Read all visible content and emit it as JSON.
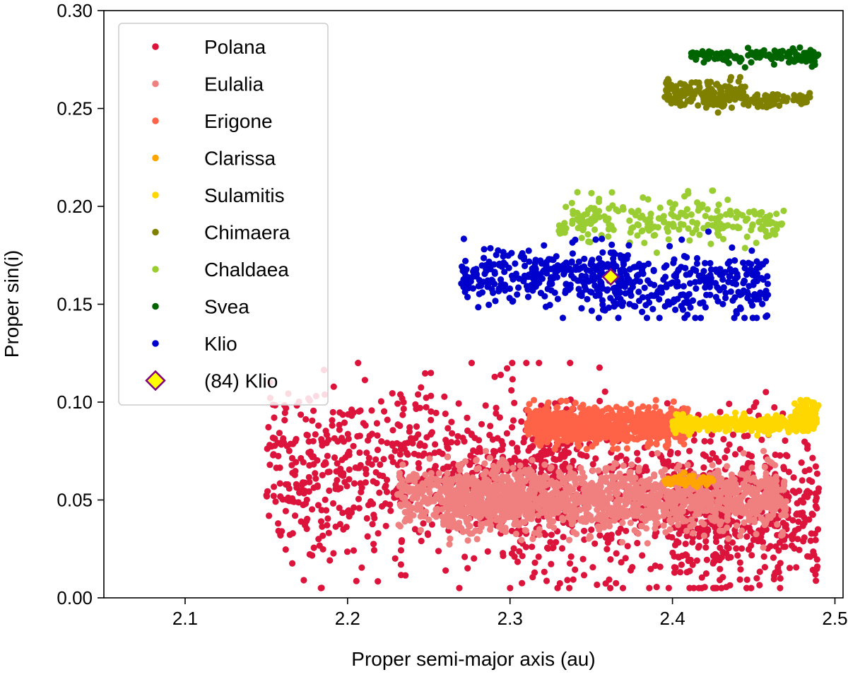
{
  "chart_data": {
    "type": "scatter",
    "title": "",
    "xlabel": "Proper semi-major axis (au)",
    "ylabel": "Proper sin(i)",
    "xlim": [
      2.05,
      2.505
    ],
    "ylim": [
      0.0,
      0.3
    ],
    "xticks": [
      2.1,
      2.2,
      2.3,
      2.4,
      2.5
    ],
    "xtick_labels": [
      "2.1",
      "2.2",
      "2.3",
      "2.4",
      "2.5"
    ],
    "yticks": [
      0.0,
      0.05,
      0.1,
      0.15,
      0.2,
      0.25,
      0.3
    ],
    "ytick_labels": [
      "0.00",
      "0.05",
      "0.10",
      "0.15",
      "0.20",
      "0.25",
      "0.30"
    ],
    "grid": false,
    "legend_position": "top-left",
    "series": [
      {
        "name": "Polana",
        "color": "#dc143c",
        "count": 1600,
        "seed": 11,
        "clusters": [
          {
            "w": 0.45,
            "a_range": [
              2.15,
              2.34
            ],
            "s_mean": 0.065,
            "s_sd": 0.022
          },
          {
            "w": 0.35,
            "a_range": [
              2.3,
              2.47
            ],
            "s_mean": 0.052,
            "s_sd": 0.022
          },
          {
            "w": 0.2,
            "a_range": [
              2.4,
              2.49
            ],
            "s_mean": 0.04,
            "s_sd": 0.018
          }
        ],
        "s_clip": [
          0.005,
          0.12
        ]
      },
      {
        "name": "Eulalia",
        "color": "#f08080",
        "count": 1700,
        "seed": 23,
        "clusters": [
          {
            "w": 0.2,
            "a_range": [
              2.23,
              2.31
            ],
            "s_mean": 0.052,
            "s_sd": 0.008
          },
          {
            "w": 0.8,
            "a_range": [
              2.26,
              2.47
            ],
            "s_mean": 0.05,
            "s_sd": 0.008
          }
        ],
        "s_clip": [
          0.025,
          0.075
        ]
      },
      {
        "name": "Erigone",
        "color": "#ff6347",
        "count": 900,
        "seed": 31,
        "clusters": [
          {
            "w": 1.0,
            "a_range": [
              2.31,
              2.41
            ],
            "s_mean": 0.088,
            "s_sd": 0.0045
          }
        ],
        "s_clip": [
          0.076,
          0.101
        ]
      },
      {
        "name": "Clarissa",
        "color": "#ffa500",
        "count": 60,
        "seed": 37,
        "clusters": [
          {
            "w": 1.0,
            "a_range": [
              2.395,
              2.425
            ],
            "s_mean": 0.06,
            "s_sd": 0.0013
          }
        ],
        "s_clip": [
          0.056,
          0.064
        ]
      },
      {
        "name": "Sulamitis",
        "color": "#ffd700",
        "count": 500,
        "seed": 41,
        "clusters": [
          {
            "w": 0.85,
            "a_range": [
              2.4,
              2.49
            ],
            "s_mean": 0.089,
            "s_sd": 0.002
          },
          {
            "w": 0.15,
            "a_range": [
              2.475,
              2.49
            ],
            "s_mean": 0.094,
            "s_sd": 0.0035
          }
        ],
        "s_clip": [
          0.083,
          0.101
        ]
      },
      {
        "name": "Chimaera",
        "color": "#808000",
        "count": 220,
        "seed": 53,
        "clusters": [
          {
            "w": 0.75,
            "a_range": [
              2.395,
              2.445
            ],
            "s_mean": 0.258,
            "s_sd": 0.0035
          },
          {
            "w": 0.25,
            "a_range": [
              2.445,
              2.485
            ],
            "s_mean": 0.254,
            "s_sd": 0.0018
          }
        ],
        "s_clip": [
          0.244,
          0.266
        ]
      },
      {
        "name": "Chaldaea",
        "color": "#9acd32",
        "count": 230,
        "seed": 59,
        "clusters": [
          {
            "w": 1.0,
            "a_range": [
              2.33,
              2.47
            ],
            "s_mean": 0.193,
            "s_sd": 0.0055
          }
        ],
        "s_clip": [
          0.17,
          0.208
        ]
      },
      {
        "name": "Svea",
        "color": "#006400",
        "count": 120,
        "seed": 61,
        "clusters": [
          {
            "w": 1.0,
            "a_range": [
              2.41,
              2.49
            ],
            "s_mean": 0.277,
            "s_sd": 0.0018
          }
        ],
        "s_clip": [
          0.271,
          0.283
        ]
      },
      {
        "name": "Klio",
        "color": "#0000cd",
        "count": 580,
        "seed": 67,
        "clusters": [
          {
            "w": 0.55,
            "a_range": [
              2.27,
              2.37
            ],
            "s_mean": 0.165,
            "s_sd": 0.0065
          },
          {
            "w": 0.45,
            "a_range": [
              2.35,
              2.46
            ],
            "s_mean": 0.16,
            "s_sd": 0.0085
          }
        ],
        "s_clip": [
          0.143,
          0.195
        ]
      }
    ],
    "highlight": {
      "name": "(84) Klio",
      "a": 2.362,
      "s": 0.164,
      "fill": "#ffff00",
      "edge": "#800080",
      "marker": "diamond"
    }
  }
}
